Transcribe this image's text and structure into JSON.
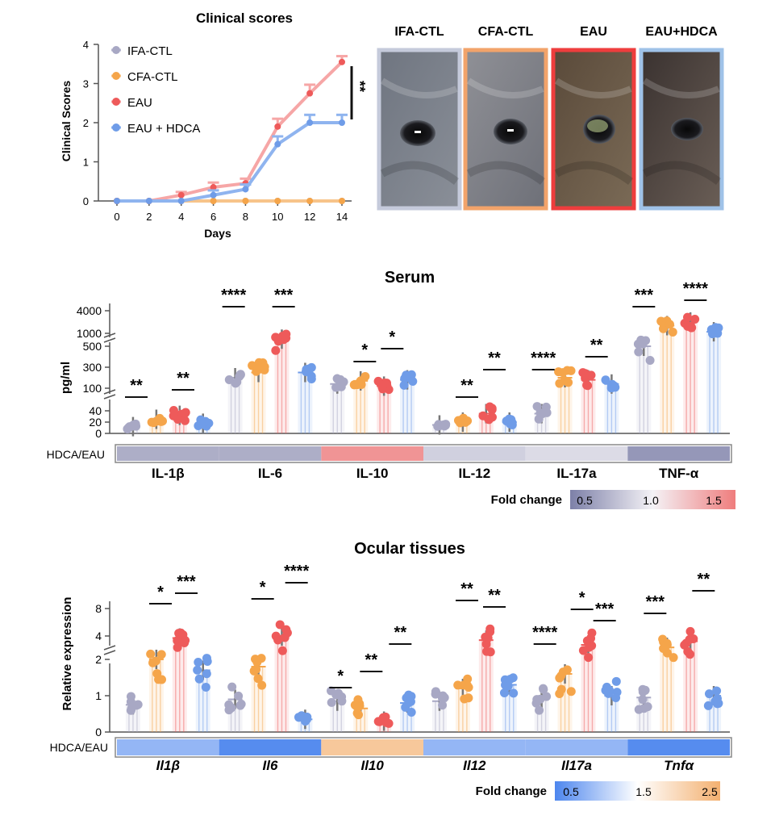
{
  "colors": {
    "IFA-CTL": "#a8a8c4",
    "CFA-CTL": "#f5a54a",
    "EAU": "#ee5a5a",
    "EAU + HDCA": "#6f9ce8",
    "line_IFA": "#b8b8d0",
    "line_CFA": "#f7c48a",
    "line_EAU": "#f6a6a6",
    "line_HDCA": "#8fb4ef",
    "photo_IFA": "#c5cadb",
    "photo_CFA": "#f2a36a",
    "photo_EAU": "#ee3d3d",
    "photo_HDCA": "#9fc2e8"
  },
  "photos": {
    "labels": [
      "IFA-CTL",
      "CFA-CTL",
      "EAU",
      "EAU+HDCA"
    ]
  },
  "heatmap_serum": {
    "row_label": "HDCA/EAU",
    "fold_change_label": "Fold change",
    "scale_ticks": [
      "0.5",
      "1.0",
      "1.5"
    ],
    "cells": [
      {
        "gene": "IL-1β",
        "value": 0.7
      },
      {
        "gene": "IL-6",
        "value": 0.7
      },
      {
        "gene": "IL-10",
        "value": 1.4
      },
      {
        "gene": "IL-12",
        "value": 0.85
      },
      {
        "gene": "IL-17a",
        "value": 0.9
      },
      {
        "gene": "TNF-α",
        "value": 0.6
      }
    ]
  },
  "heatmap_ocular": {
    "row_label": "HDCA/EAU",
    "fold_change_label": "Fold change",
    "scale_ticks": [
      "0.5",
      "1.5",
      "2.5"
    ],
    "cells": [
      {
        "gene": "Il1β",
        "value": 0.9
      },
      {
        "gene": "Il6",
        "value": 0.55
      },
      {
        "gene": "Il10",
        "value": 2.2
      },
      {
        "gene": "Il12",
        "value": 0.9
      },
      {
        "gene": "Il17a",
        "value": 0.9
      },
      {
        "gene": "Tnfα",
        "value": 0.55
      }
    ]
  },
  "chart_data": [
    {
      "type": "line",
      "title": "Clinical scores",
      "xlabel": "Days",
      "ylabel": "Clinical Scores",
      "x": [
        0,
        2,
        4,
        6,
        8,
        10,
        12,
        14
      ],
      "xlim": [
        0,
        14
      ],
      "ylim": [
        0,
        4
      ],
      "yticks": [
        0,
        1,
        2,
        3,
        4
      ],
      "legend_position": "top-left",
      "series": [
        {
          "name": "IFA-CTL",
          "values": [
            0,
            0,
            0,
            0,
            0,
            0,
            0,
            0
          ],
          "err": [
            0,
            0,
            0,
            0,
            0,
            0,
            0,
            0
          ]
        },
        {
          "name": "CFA-CTL",
          "values": [
            0,
            0,
            0,
            0,
            0,
            0,
            0,
            0
          ],
          "err": [
            0,
            0,
            0,
            0,
            0,
            0,
            0,
            0
          ]
        },
        {
          "name": "EAU",
          "values": [
            0,
            0,
            0.15,
            0.35,
            0.45,
            1.9,
            2.75,
            3.55
          ],
          "err": [
            0,
            0,
            0.08,
            0.12,
            0.12,
            0.2,
            0.22,
            0.15
          ]
        },
        {
          "name": "EAU + HDCA",
          "values": [
            0,
            0,
            0,
            0.15,
            0.3,
            1.45,
            2.0,
            2.0
          ],
          "err": [
            0,
            0,
            0,
            0.12,
            0.12,
            0.2,
            0.2,
            0.2
          ]
        }
      ],
      "significance": "**"
    },
    {
      "type": "bar",
      "title": "Serum",
      "ylabel": "pg/ml",
      "yticks": [
        "0",
        "20",
        "40",
        "100",
        "300",
        "500",
        "1000",
        "4000"
      ],
      "categories": [
        "IL-1β",
        "IL-6",
        "IL-10",
        "IL-12",
        "IL-17a",
        "TNF-α"
      ],
      "series": [
        {
          "name": "IFA-CTL",
          "values": [
            12,
            200,
            140,
            15,
            35,
            500
          ]
        },
        {
          "name": "CFA-CTL",
          "values": [
            25,
            250,
            170,
            20,
            200,
            1600
          ]
        },
        {
          "name": "EAU",
          "values": [
            32,
            700,
            120,
            35,
            180,
            2000
          ]
        },
        {
          "name": "EAU + HDCA",
          "values": [
            18,
            250,
            180,
            20,
            140,
            1100
          ]
        }
      ],
      "significance": [
        {
          "category": "IL-1β",
          "left": "**",
          "right": "**"
        },
        {
          "category": "IL-6",
          "left": "****",
          "right": "***"
        },
        {
          "category": "IL-10",
          "left": "*",
          "right": "*"
        },
        {
          "category": "IL-12",
          "left": "**",
          "right": "**"
        },
        {
          "category": "IL-17a",
          "left": "****",
          "right": "**"
        },
        {
          "category": "TNF-α",
          "left": "***",
          "right": "****"
        }
      ]
    },
    {
      "type": "bar",
      "title": "Ocular tissues",
      "ylabel": "Relative expression",
      "yticks": [
        "0",
        "1",
        "2",
        "4",
        "8"
      ],
      "categories": [
        "Il1β",
        "Il6",
        "Il10",
        "Il12",
        "Il17a",
        "Tnfα"
      ],
      "series": [
        {
          "name": "IFA-CTL",
          "values": [
            0.75,
            0.9,
            0.85,
            0.85,
            0.9,
            0.95
          ]
        },
        {
          "name": "CFA-CTL",
          "values": [
            2.0,
            1.8,
            0.65,
            1.2,
            1.6,
            3.0
          ]
        },
        {
          "name": "EAU",
          "values": [
            3.8,
            4.0,
            0.3,
            3.6,
            3.2,
            3.5
          ]
        },
        {
          "name": "EAU + HDCA",
          "values": [
            1.7,
            0.35,
            0.8,
            1.3,
            1.0,
            1.0
          ]
        }
      ],
      "significance": [
        {
          "category": "Il1β",
          "a": "*",
          "b": "***"
        },
        {
          "category": "Il6",
          "a": "*",
          "b": "****"
        },
        {
          "category": "Il10",
          "a": "*",
          "b": "**",
          "c": "**"
        },
        {
          "category": "Il12",
          "a": "**",
          "b": "**"
        },
        {
          "category": "Il17a",
          "a": "****",
          "b": "*",
          "c": "***"
        },
        {
          "category": "Tnfα",
          "a": "***",
          "b": "**"
        }
      ]
    }
  ]
}
